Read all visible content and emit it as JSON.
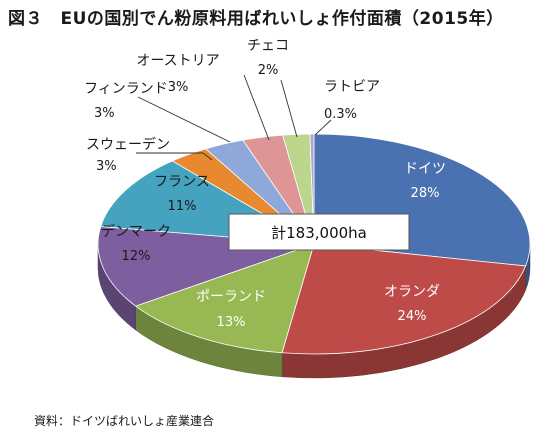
{
  "title": "図３　EUの国別でん粉原料用ばれいしょ作付面積（2015年）",
  "source": "資料：ドイツばれいしょ産業連合",
  "total_label": "計183,000ha",
  "chart_data": {
    "type": "pie",
    "title": "図３　EUの国別でん粉原料用ばれいしょ作付面積（2015年）",
    "total": "計183,000ha",
    "series": [
      {
        "label": "ドイツ",
        "value": 28,
        "value_label": "28%",
        "color": "#4a72b0"
      },
      {
        "label": "オランダ",
        "value": 24,
        "value_label": "24%",
        "color": "#be4b48"
      },
      {
        "label": "ポーランド",
        "value": 13,
        "value_label": "13%",
        "color": "#97b853"
      },
      {
        "label": "デンマーク",
        "value": 12,
        "value_label": "12%",
        "color": "#7d5fa0"
      },
      {
        "label": "フランス",
        "value": 11,
        "value_label": "11%",
        "color": "#46a3bf"
      },
      {
        "label": "スウェーデン",
        "value": 3,
        "value_label": "3%",
        "color": "#e9892f"
      },
      {
        "label": "フィンランド",
        "value": 3,
        "value_label": "3%",
        "color": "#8ea9d9"
      },
      {
        "label": "オーストリア",
        "value": 3,
        "value_label": "3%",
        "color": "#dd9595"
      },
      {
        "label": "チェコ",
        "value": 2,
        "value_label": "2%",
        "color": "#bcd68e"
      },
      {
        "label": "ラトビア",
        "value": 0.3,
        "value_label": "0.3%",
        "color": "#b3a4cc"
      }
    ]
  }
}
